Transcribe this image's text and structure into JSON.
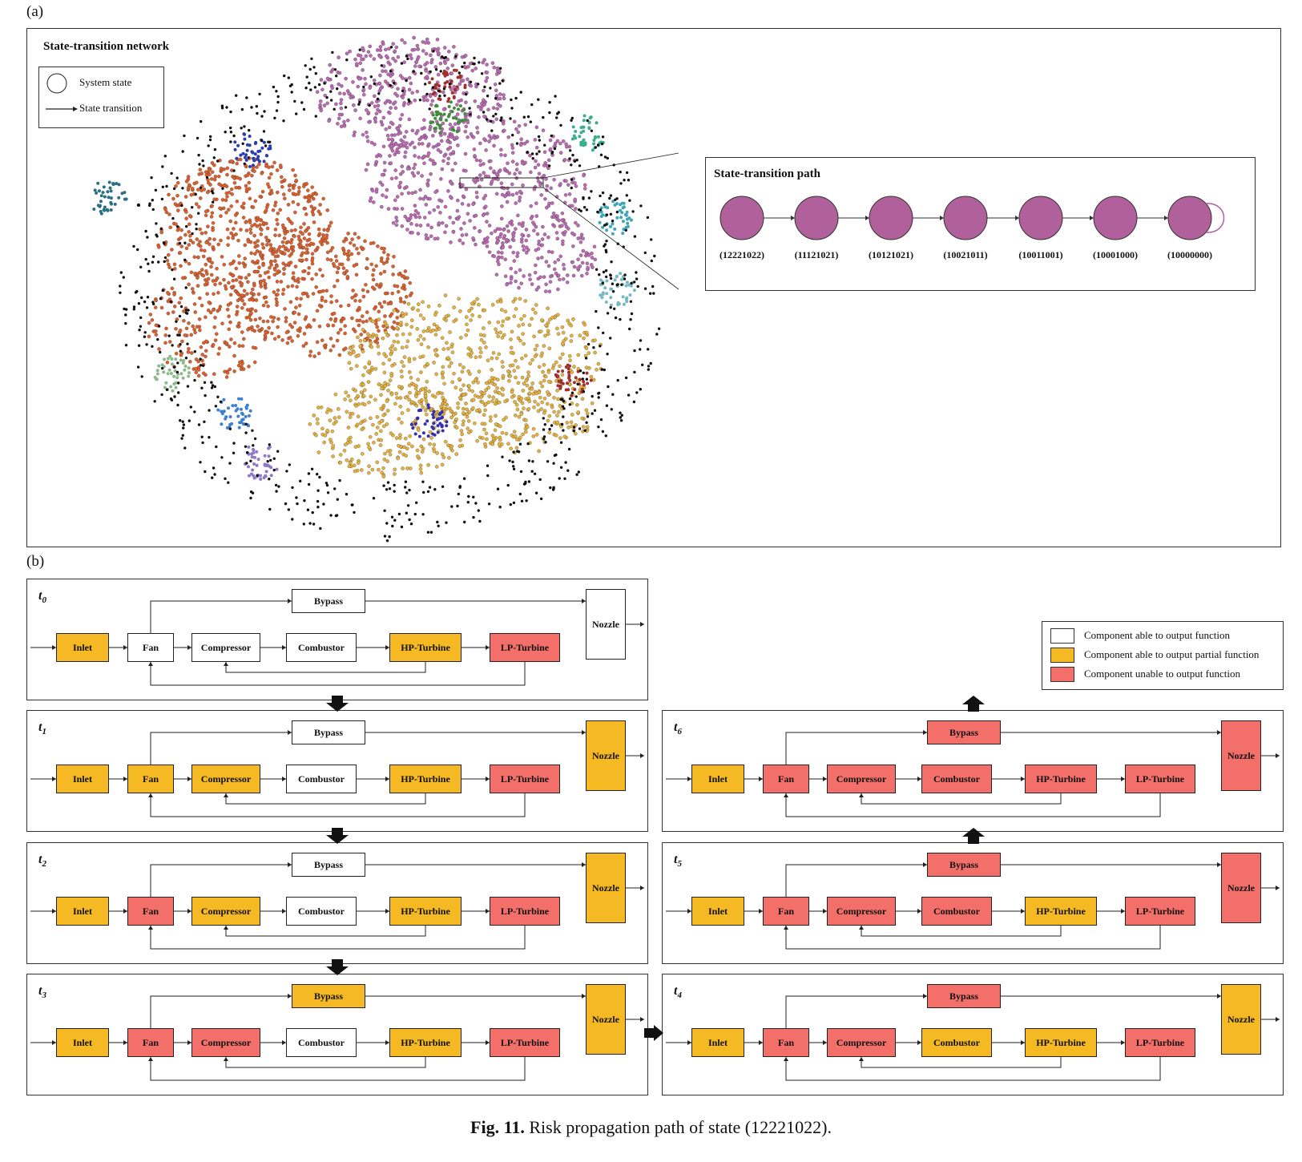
{
  "panel_a": {
    "label": "(a)",
    "network_title": "State-transition network",
    "legend": {
      "state": "System state",
      "transition": "State transition"
    },
    "path_title": "State-transition path",
    "path_states": [
      "(12221022)",
      "(11121021)",
      "(10121021)",
      "(10021011)",
      "(10011001)",
      "(10001000)",
      "(10000000)"
    ],
    "colors": {
      "purple_state": "#b0609a",
      "orange": "#e0602c",
      "yellow": "#e8b33a",
      "magenta": "#bc6bb4"
    }
  },
  "panel_b": {
    "label": "(b)",
    "legend": [
      {
        "text": "Component able to output function",
        "color": "#ffffff"
      },
      {
        "text": "Component able to output partial function",
        "color": "#f5b923"
      },
      {
        "text": "Component unable to output function",
        "color": "#f36f6a"
      }
    ],
    "components": {
      "inlet": "Inlet",
      "fan": "Fan",
      "compressor": "Compressor",
      "combustor": "Combustor",
      "hpt": "HP-Turbine",
      "lpt": "LP-Turbine",
      "bypass": "Bypass",
      "nozzle": "Nozzle"
    },
    "steps": [
      {
        "t": "t",
        "sub": "0",
        "states": {
          "inlet": "y",
          "fan": "w",
          "compressor": "w",
          "combustor": "w",
          "hpt": "y",
          "lpt": "r",
          "bypass": "w",
          "nozzle": "w"
        }
      },
      {
        "t": "t",
        "sub": "1",
        "states": {
          "inlet": "y",
          "fan": "y",
          "compressor": "y",
          "combustor": "w",
          "hpt": "y",
          "lpt": "r",
          "bypass": "w",
          "nozzle": "y"
        }
      },
      {
        "t": "t",
        "sub": "2",
        "states": {
          "inlet": "y",
          "fan": "r",
          "compressor": "y",
          "combustor": "w",
          "hpt": "y",
          "lpt": "r",
          "bypass": "w",
          "nozzle": "y"
        }
      },
      {
        "t": "t",
        "sub": "3",
        "states": {
          "inlet": "y",
          "fan": "r",
          "compressor": "r",
          "combustor": "w",
          "hpt": "y",
          "lpt": "r",
          "bypass": "y",
          "nozzle": "y"
        }
      },
      {
        "t": "t",
        "sub": "4",
        "states": {
          "inlet": "y",
          "fan": "r",
          "compressor": "r",
          "combustor": "y",
          "hpt": "y",
          "lpt": "r",
          "bypass": "r",
          "nozzle": "y"
        }
      },
      {
        "t": "t",
        "sub": "5",
        "states": {
          "inlet": "y",
          "fan": "r",
          "compressor": "r",
          "combustor": "r",
          "hpt": "y",
          "lpt": "r",
          "bypass": "r",
          "nozzle": "r"
        }
      },
      {
        "t": "t",
        "sub": "6",
        "states": {
          "inlet": "y",
          "fan": "r",
          "compressor": "r",
          "combustor": "r",
          "hpt": "r",
          "lpt": "r",
          "bypass": "r",
          "nozzle": "r"
        }
      }
    ]
  },
  "caption": {
    "prefix": "Fig. 11.",
    "text": "Risk propagation path of state (12221022)."
  }
}
